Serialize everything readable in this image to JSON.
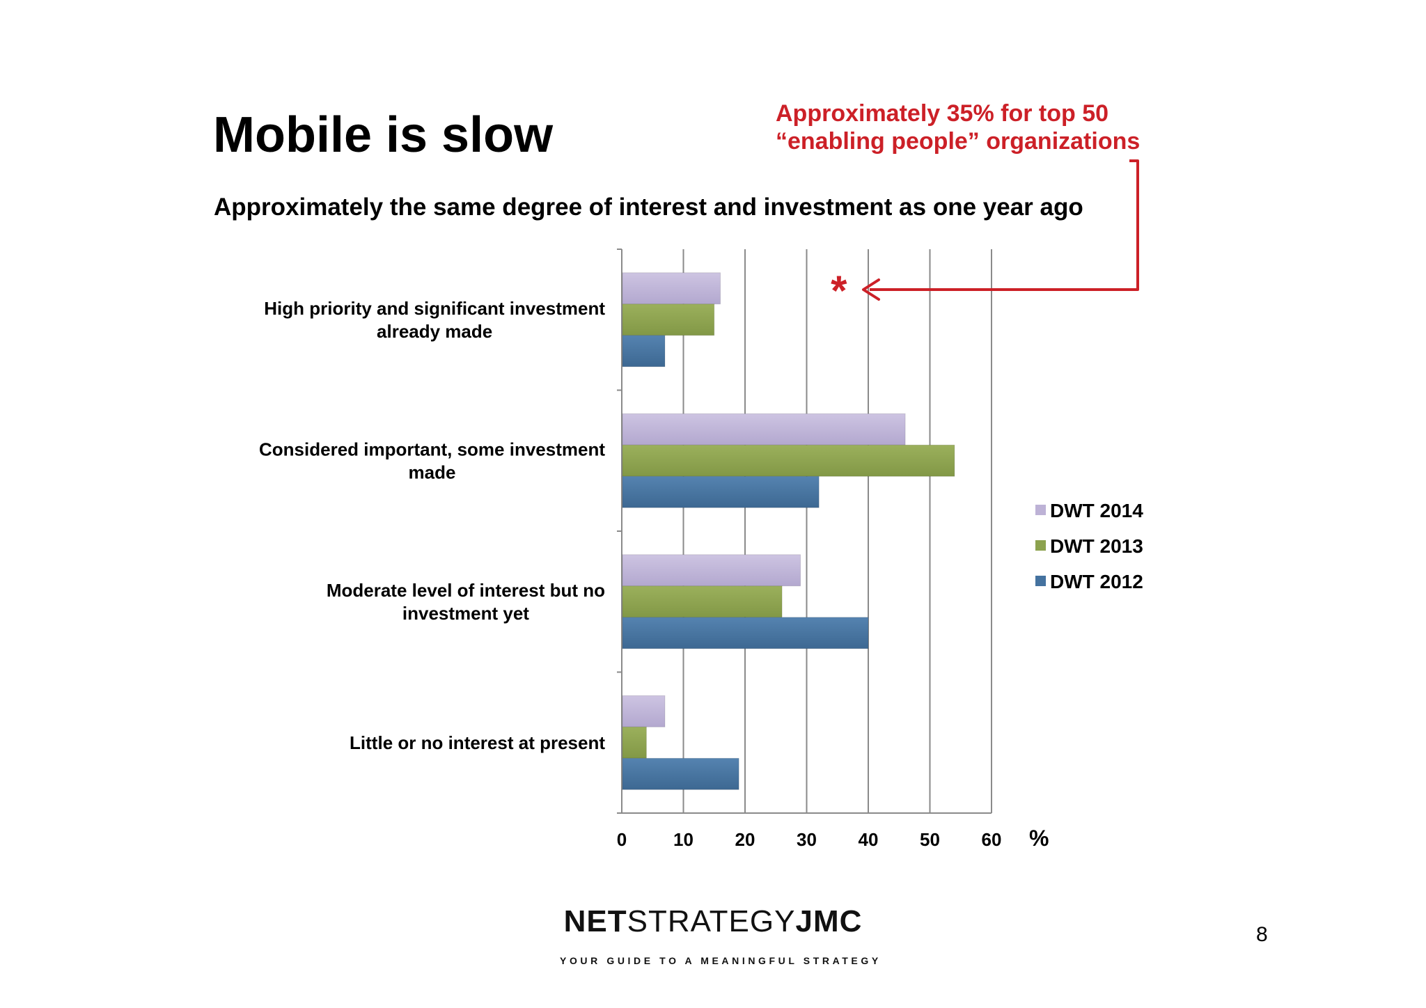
{
  "slide": {
    "title": "Mobile is slow",
    "subtitle": "Approximately the same degree of interest and investment as one year ago",
    "callout": {
      "line1": "Approximately 35% for top 50",
      "line2": "“enabling people” organizations",
      "marker": "*",
      "value": 35,
      "color": "#cc2027"
    },
    "page_number": "8",
    "logo": {
      "part1": "NET",
      "part2": "STRATEGY",
      "part3": "JMC",
      "tagline": "YOUR GUIDE TO A MEANINGFUL STRATEGY"
    }
  },
  "chart_data": {
    "type": "bar",
    "orientation": "horizontal",
    "title": "",
    "xlabel": "",
    "ylabel": "",
    "unit": "%",
    "xlim": [
      0,
      60
    ],
    "ticks": [
      0,
      10,
      20,
      30,
      40,
      50,
      60
    ],
    "grid": "vertical",
    "legend_position": "right",
    "categories": [
      [
        "High priority and significant investment",
        "already made"
      ],
      [
        "Considered important, some investment",
        "made"
      ],
      [
        "Moderate level of interest but no",
        "investment yet"
      ],
      [
        "Little or no interest at present"
      ]
    ],
    "series": [
      {
        "name": "DWT 2014",
        "color": "#bdb2d6",
        "values": [
          16,
          46,
          29,
          7
        ]
      },
      {
        "name": "DWT 2013",
        "color": "#8ca24e",
        "values": [
          15,
          54,
          26,
          4
        ]
      },
      {
        "name": "DWT 2012",
        "color": "#44729f",
        "values": [
          7,
          32,
          40,
          19
        ]
      }
    ]
  }
}
